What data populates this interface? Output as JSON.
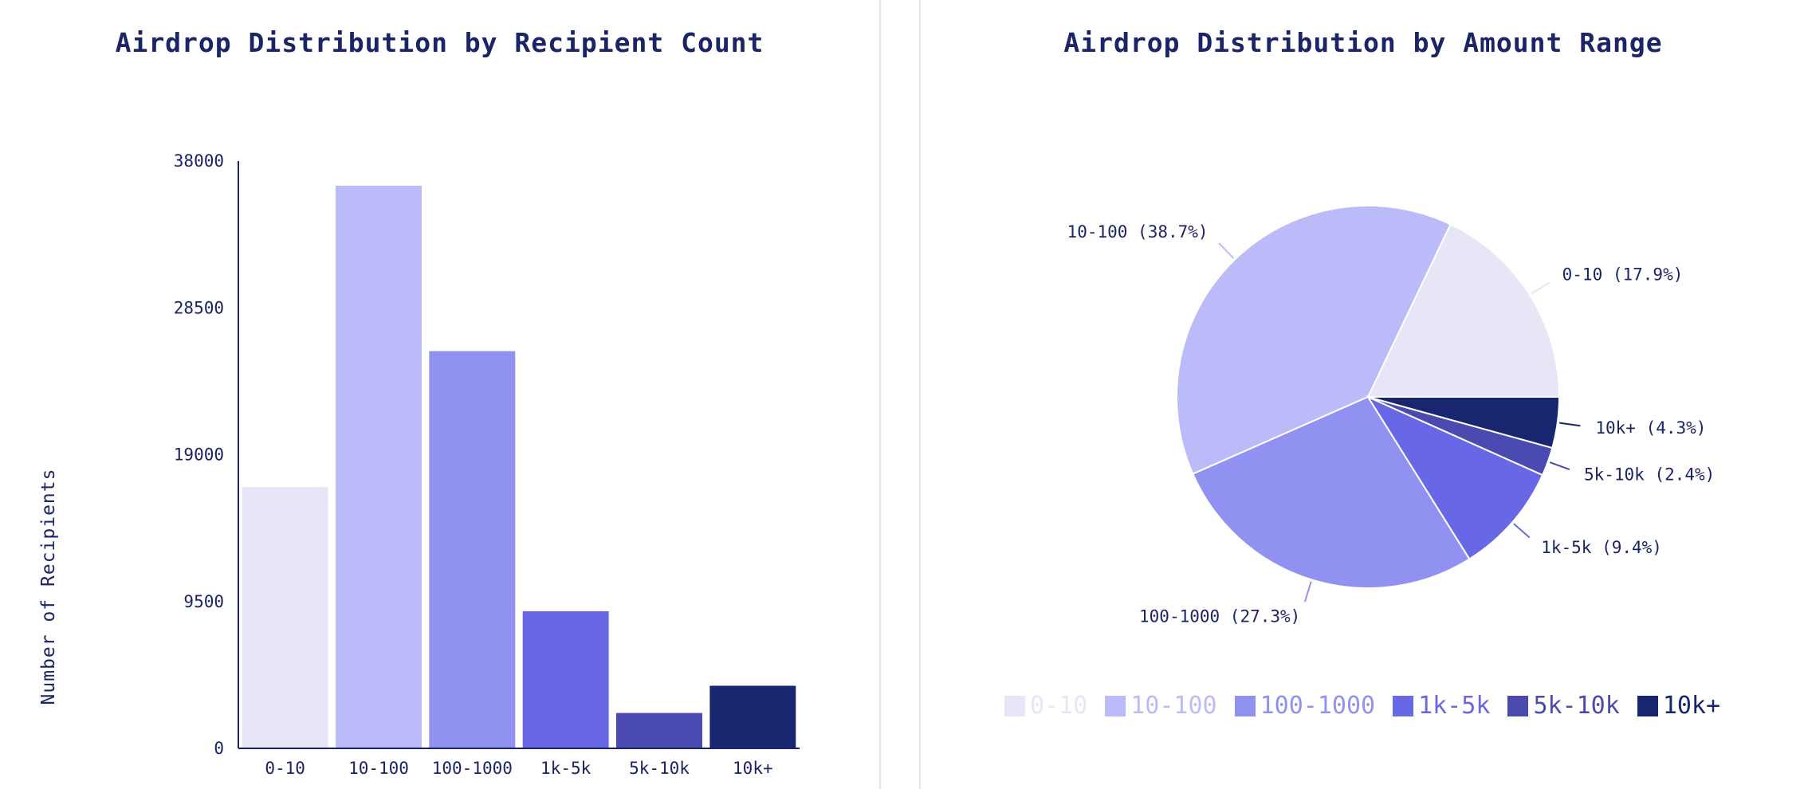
{
  "chart_data": [
    {
      "type": "bar",
      "title": "Airdrop Distribution by Recipient Count",
      "xlabel": "",
      "ylabel": "Number of Recipients",
      "categories": [
        "0-10",
        "10-100",
        "100-1000",
        "1k-5k",
        "5k-10k",
        "10k+"
      ],
      "values": [
        16900,
        36400,
        25700,
        8870,
        2290,
        4050
      ],
      "colors": [
        "#e6e6f7",
        "#bbbbf9",
        "#9191f2",
        "#6868e6",
        "#4a4ab0",
        "#18266f"
      ],
      "ylim": [
        0,
        38000
      ],
      "yticks": [
        "0",
        "9500",
        "19000",
        "28500",
        "38000"
      ],
      "grid": false
    },
    {
      "type": "pie",
      "title": "Airdrop Distribution by Amount Range",
      "labels": [
        "0-10",
        "10-100",
        "100-1000",
        "1k-5k",
        "5k-10k",
        "10k+"
      ],
      "values": [
        17.9,
        38.7,
        27.3,
        9.4,
        2.4,
        4.3
      ],
      "slice_labels": [
        "0-10 (17.9%)",
        "10-100 (38.7%)",
        "100-1000 (27.3%)",
        "1k-5k (9.4%)",
        "5k-10k (2.4%)",
        "10k+ (4.3%)"
      ],
      "colors": [
        "#e6e6f7",
        "#bbbbf9",
        "#9191f2",
        "#6868e6",
        "#4a4ab0",
        "#18266f"
      ],
      "legend_position": "bottom"
    }
  ]
}
